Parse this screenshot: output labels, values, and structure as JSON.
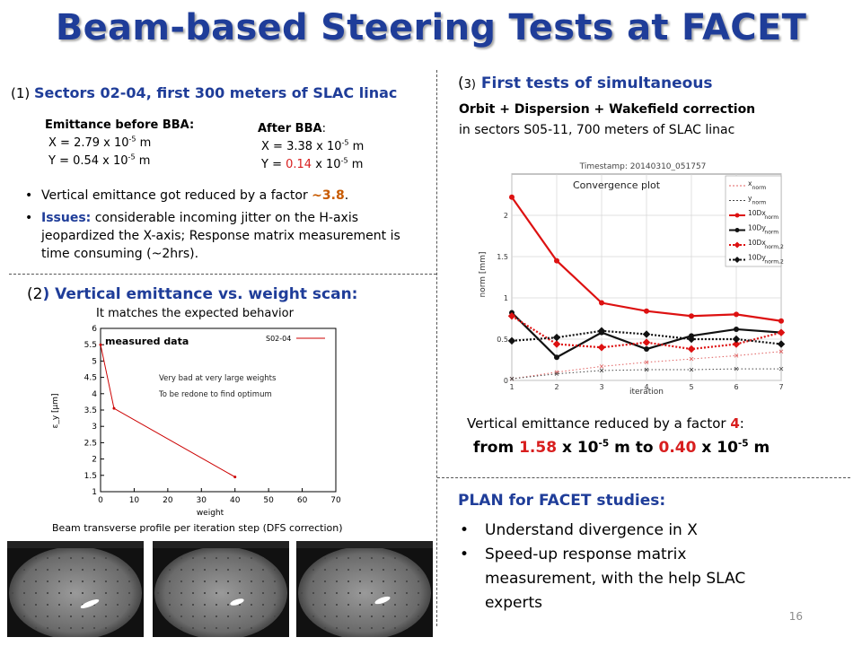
{
  "title": "Beam-based Steering Tests at FACET",
  "sec1": {
    "prefix": "(1)",
    "heading": "Sectors 02-04, first 300 meters of SLAC linac",
    "before_label": "Emittance before BBA:",
    "before_x_pre": "X = 2.79 x 10",
    "before_x_exp": "-5",
    "before_x_unit": " m",
    "before_y_pre": "Y = 0.54 x 10",
    "before_y_exp": "-5",
    "before_y_unit": " m",
    "after_label": "After BBA",
    "after_colon": ":",
    "after_x_pre": "X = 3.38 x 10",
    "after_x_exp": "-5",
    "after_x_unit": " m",
    "after_y_pre": "Y = ",
    "after_y_val": "0.14",
    "after_y_mid": " x 10",
    "after_y_exp": "-5",
    "after_y_unit": " m",
    "bullet1_text": "Vertical emittance got reduced by a factor ",
    "bullet1_factor": "~3.8",
    "bullet1_end": ".",
    "bullet2_label": "Issues:",
    "bullet2_text": "  considerable incoming jitter on the H-axis jeopardized the X-axis;  Response matrix measurement is time consuming (~2hrs)."
  },
  "sec2": {
    "prefix": "(2",
    "heading": ") Vertical emittance vs. weight scan:",
    "subtitle": "It matches the expected behavior",
    "caption": "Beam transverse profile per iteration step (DFS correction)"
  },
  "sec3": {
    "prefix": "(",
    "prefix_num": "3)",
    "heading": " First tests of simultaneous",
    "line2": "Orbit + Dispersion  + Wakefield correction",
    "line3": "in sectors S05-11, 700 meters of SLAC linac",
    "result_text": "Vertical emittance reduced by a factor ",
    "result_factor": "4",
    "result_colon": ":",
    "from_label": "from ",
    "from_val": "1.58",
    "from_mid": " x 10",
    "from_exp": "-5",
    "from_unit": " m  to ",
    "to_val": "0.40",
    "to_mid": " x 10",
    "to_exp": "-5",
    "to_unit": " m"
  },
  "plan": {
    "heading": "PLAN for FACET studies:",
    "items": [
      "Understand divergence in X",
      "Speed-up response matrix measurement, with the help SLAC experts"
    ]
  },
  "slide_number": "16",
  "chart_data": [
    {
      "type": "line",
      "title": "",
      "xlabel": "weight",
      "ylabel": "ε_y [μm]",
      "xlim": [
        0,
        70
      ],
      "ylim": [
        1,
        6
      ],
      "xticks": [
        "0",
        "10",
        "20",
        "30",
        "40",
        "50",
        "60",
        "70"
      ],
      "yticks": [
        "1",
        "1.5",
        "2",
        "2.5",
        "3",
        "3.5",
        "4",
        "4.5",
        "5",
        "5.5",
        "6"
      ],
      "series": [
        {
          "name": "S02-04",
          "color": "#cc0000",
          "x": [
            0,
            4,
            40
          ],
          "y": [
            5.5,
            3.55,
            1.45
          ]
        }
      ],
      "annotations": [
        "measured data",
        "Very bad at very large weights",
        "To be redone to find optimum"
      ],
      "legend": "top-right"
    },
    {
      "type": "line",
      "title": "Timestamp: 20140310_051757",
      "annotation": "Convergence plot",
      "xlabel": "iteration",
      "ylabel": "norm [mm]",
      "xlim": [
        1,
        7
      ],
      "ylim": [
        0,
        2.5
      ],
      "xticks": [
        "1",
        "2",
        "3",
        "4",
        "5",
        "6",
        "7"
      ],
      "yticks": [
        "0",
        "0.5",
        "1",
        "1.5",
        "2"
      ],
      "legend": "top-right",
      "series": [
        {
          "name": "x",
          "sub": "norm",
          "color": "#e06060",
          "style": "dotted-light",
          "marker": "x",
          "y": [
            0.02,
            0.1,
            0.17,
            0.22,
            0.26,
            0.3,
            0.35
          ]
        },
        {
          "name": "y",
          "sub": "norm",
          "color": "#444444",
          "style": "dotted-light",
          "marker": "x",
          "y": [
            0.02,
            0.08,
            0.12,
            0.13,
            0.13,
            0.14,
            0.14
          ]
        },
        {
          "name": "10Dx",
          "sub": "norm",
          "color": "#dd1111",
          "style": "solid",
          "marker": "dot",
          "y": [
            2.22,
            1.45,
            0.94,
            0.84,
            0.78,
            0.8,
            0.72
          ]
        },
        {
          "name": "10Dy",
          "sub": "norm",
          "color": "#111111",
          "style": "solid",
          "marker": "dot",
          "y": [
            0.82,
            0.28,
            0.58,
            0.38,
            0.54,
            0.62,
            0.58
          ]
        },
        {
          "name": "10Dx",
          "sub": "norm,2",
          "color": "#dd1111",
          "style": "dotted",
          "marker": "diamond",
          "y": [
            0.78,
            0.44,
            0.4,
            0.46,
            0.38,
            0.44,
            0.58
          ]
        },
        {
          "name": "10Dy",
          "sub": "norm,2",
          "color": "#111111",
          "style": "dotted",
          "marker": "diamond",
          "y": [
            0.48,
            0.52,
            0.6,
            0.56,
            0.5,
            0.5,
            0.44
          ]
        }
      ]
    }
  ]
}
